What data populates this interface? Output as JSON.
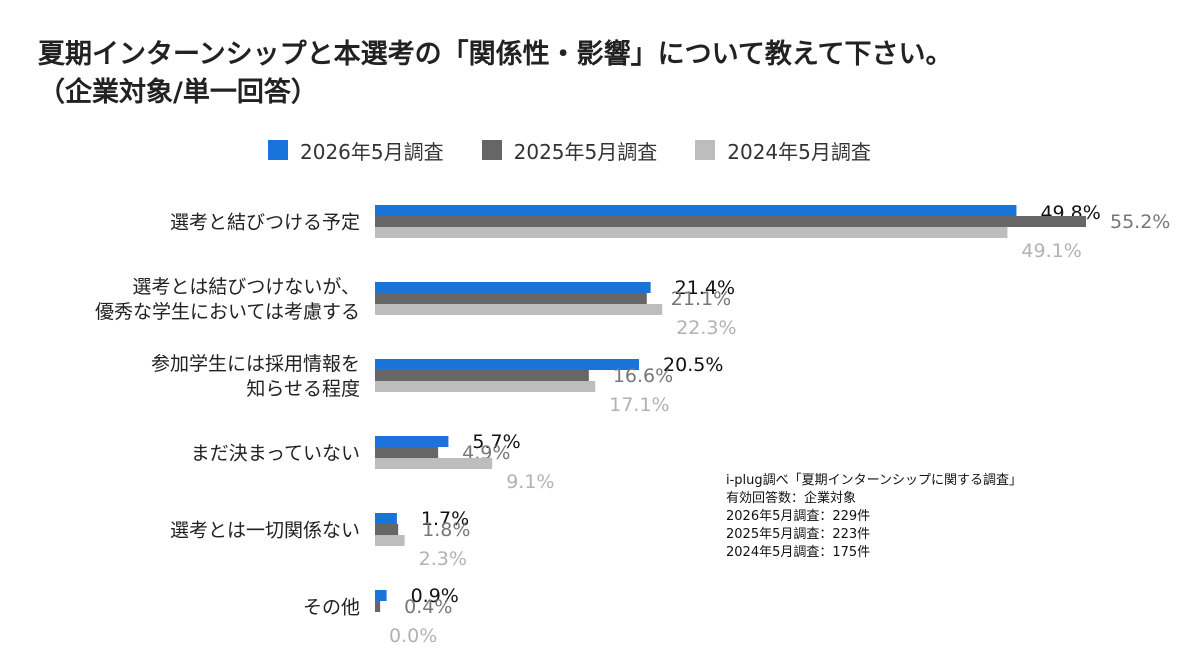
{
  "title": {
    "line1": "夏期インターンシップと本選考の「関係性・影響」について教えて下さい。",
    "line2": "（企業対象/単一回答）"
  },
  "legend": [
    {
      "label": "2026年5月調査",
      "color": "#1a73d9"
    },
    {
      "label": "2025年5月調査",
      "color": "#666666"
    },
    {
      "label": "2024年5月調査",
      "color": "#bdbdbd"
    }
  ],
  "source": {
    "line1": "i-plug調べ「夏期インターンシップに関する調査」",
    "line2": "有効回答数：企業対象",
    "line3": "2026年5月調査：229件",
    "line4": "2025年5月調査：223件",
    "line5": "2024年5月調査：175件"
  },
  "chart_data": {
    "type": "bar",
    "orientation": "horizontal",
    "categories": [
      [
        "選考と結びつける予定"
      ],
      [
        "選考とは結びつけないが、",
        "優秀な学生においては考慮する"
      ],
      [
        "参加学生には採用情報を",
        "知らせる程度"
      ],
      [
        "まだ決まっていない"
      ],
      [
        "選考とは一切関係ない"
      ],
      [
        "その他"
      ]
    ],
    "series": [
      {
        "name": "2026年5月調査",
        "color": "#1a73d9",
        "label_color": "#111111",
        "values": [
          49.8,
          21.4,
          20.5,
          5.7,
          1.7,
          0.9
        ]
      },
      {
        "name": "2025年5月調査",
        "color": "#666666",
        "label_color": "#777777",
        "values": [
          55.2,
          21.1,
          16.6,
          4.9,
          1.8,
          0.4
        ]
      },
      {
        "name": "2024年5月調査",
        "color": "#bdbdbd",
        "label_color": "#b2b2b2",
        "values": [
          49.1,
          22.3,
          17.1,
          9.1,
          2.3,
          0.0
        ]
      }
    ],
    "unit": "%",
    "xlim": [
      0,
      55.2
    ],
    "grid": false,
    "legend_position": "top"
  }
}
